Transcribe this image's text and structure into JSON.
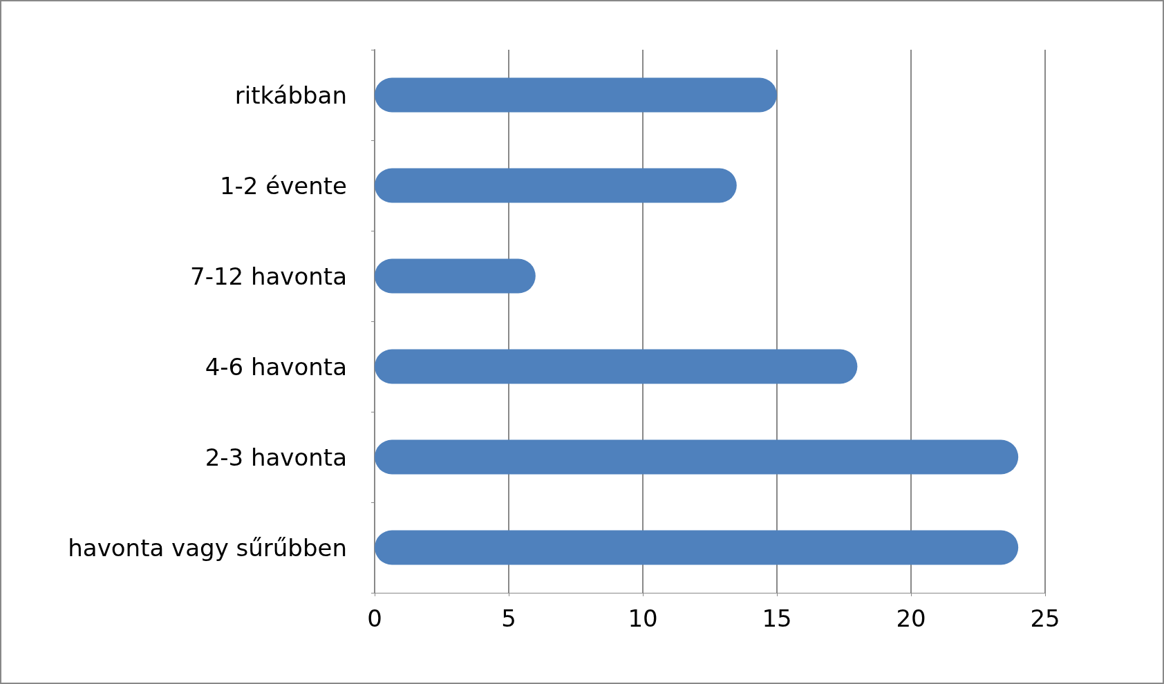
{
  "chart_data": {
    "type": "bar",
    "orientation": "horizontal",
    "categories": [
      "ritkábban",
      "1-2 évente",
      "7-12 havonta",
      "4-6 havonta",
      "2-3 havonta",
      "havonta vagy sűrűbben"
    ],
    "values": [
      15,
      13.5,
      6,
      18,
      24,
      24
    ],
    "color": "#4f81bd",
    "xlim": [
      0,
      25
    ],
    "xticks": [
      0,
      5,
      10,
      15,
      20,
      25
    ],
    "grid": "x"
  }
}
